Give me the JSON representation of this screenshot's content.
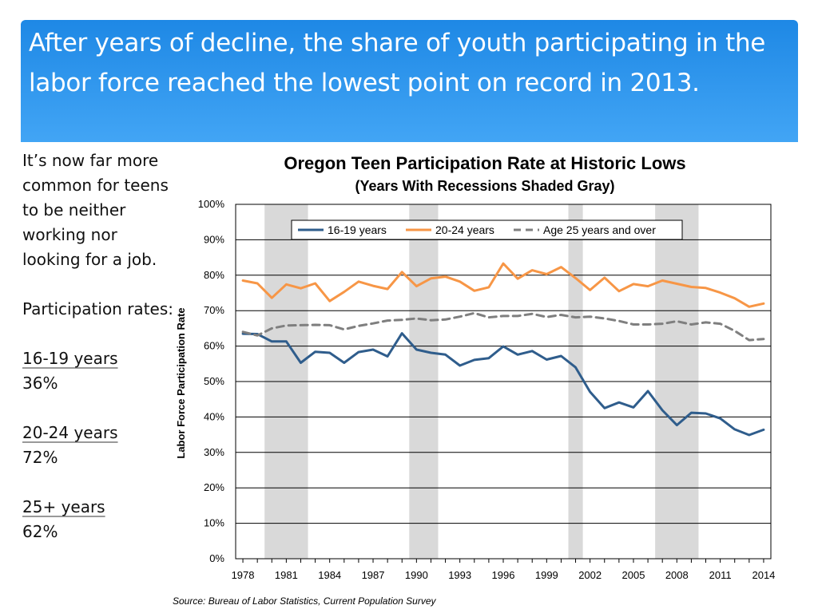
{
  "slide": {
    "title": "After years of decline, the share of youth participating in the labor force reached the lowest point on record in 2013.",
    "colors": {
      "banner_top": "#1e88e5",
      "banner_bottom": "#42a5f5"
    }
  },
  "sidebar": {
    "intro": "It’s now far more common for teens to be neither working nor looking for a job.",
    "rates_heading": "Participation rates:",
    "stats": [
      {
        "label": "16-19 years",
        "value": "36%"
      },
      {
        "label": "20-24 years",
        "value": "72%"
      },
      {
        "label": "25+ years",
        "value": "62%"
      }
    ]
  },
  "source": "Source: Bureau of Labor Statistics, Current Population Survey",
  "chart_data": {
    "type": "line",
    "title": "Oregon Teen Participation Rate at Historic Lows",
    "subtitle": "(Years With Recessions Shaded Gray)",
    "xlabel": "",
    "ylabel": "Labor Force Participation Rate",
    "ylim": [
      0,
      100
    ],
    "xlim": [
      1977.5,
      2014.5
    ],
    "yticks": [
      0,
      10,
      20,
      30,
      40,
      50,
      60,
      70,
      80,
      90,
      100
    ],
    "ytick_labels": [
      "0%",
      "10%",
      "20%",
      "30%",
      "40%",
      "50%",
      "60%",
      "70%",
      "80%",
      "90%",
      "100%"
    ],
    "xticks": [
      "1978",
      "1981",
      "1984",
      "1987",
      "1990",
      "1993",
      "1996",
      "1999",
      "2002",
      "2005",
      "2008",
      "2011",
      "2014"
    ],
    "grid": "horizontal",
    "legend_position": "top-right",
    "recessions": [
      [
        1979.5,
        1982.5
      ],
      [
        1989.5,
        1991.5
      ],
      [
        2000.5,
        2001.5
      ],
      [
        2006.5,
        2009.5
      ]
    ],
    "x": [
      1978,
      1979,
      1980,
      1981,
      1982,
      1983,
      1984,
      1985,
      1986,
      1987,
      1988,
      1989,
      1990,
      1991,
      1992,
      1993,
      1994,
      1995,
      1996,
      1997,
      1998,
      1999,
      2000,
      2001,
      2002,
      2003,
      2004,
      2005,
      2006,
      2007,
      2008,
      2009,
      2010,
      2011,
      2012,
      2013,
      2014
    ],
    "series": [
      {
        "name": "16-19 years",
        "color": "#2f5d8c",
        "dash": "solid",
        "values": [
          63.5,
          63.4,
          61.3,
          61.3,
          55.3,
          58.4,
          58.1,
          55.3,
          58.3,
          59.0,
          57.1,
          63.6,
          59.0,
          58.1,
          57.6,
          54.5,
          56.1,
          56.6,
          59.9,
          57.6,
          58.6,
          56.2,
          57.2,
          54.0,
          47.1,
          42.5,
          44.1,
          42.7,
          47.3,
          41.9,
          37.7,
          41.2,
          41.0,
          39.6,
          36.5,
          34.9,
          36.4
        ]
      },
      {
        "name": "20-24 years",
        "color": "#f79646",
        "dash": "solid",
        "values": [
          78.5,
          77.7,
          73.6,
          77.4,
          76.3,
          77.7,
          72.7,
          75.3,
          78.2,
          77.0,
          76.1,
          80.9,
          76.9,
          79.1,
          79.6,
          78.2,
          75.6,
          76.6,
          83.3,
          79.0,
          81.4,
          80.3,
          82.3,
          79.2,
          75.8,
          79.3,
          75.5,
          77.5,
          76.9,
          78.5,
          77.6,
          76.7,
          76.4,
          75.1,
          73.5,
          71.1,
          72.0
        ]
      },
      {
        "name": "Age 25 years and over",
        "color": "#7f7f7f",
        "dash": "dashed",
        "values": [
          64.0,
          63.0,
          65.0,
          65.8,
          65.9,
          66.0,
          65.9,
          64.7,
          65.7,
          66.4,
          67.2,
          67.4,
          67.8,
          67.3,
          67.5,
          68.3,
          69.3,
          68.1,
          68.5,
          68.5,
          69.1,
          68.2,
          68.8,
          68.1,
          68.3,
          67.8,
          67.1,
          66.1,
          66.1,
          66.3,
          67.0,
          66.1,
          66.7,
          66.3,
          64.3,
          61.7,
          62.0
        ]
      }
    ]
  }
}
